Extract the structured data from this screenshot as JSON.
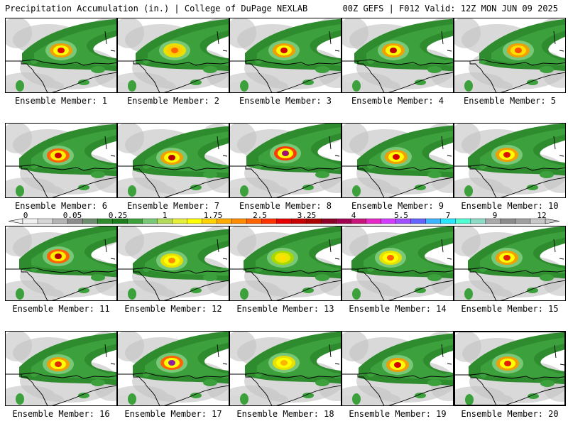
{
  "header": {
    "left": "Precipitation Accumulation (in.) | College of DuPage NEXLAB",
    "right": "00Z GEFS | F012 Valid: 12Z MON JUN 09 2025"
  },
  "members": [
    {
      "label": "Ensemble Member: 1",
      "core": [
        "#f0a000",
        "#ffff00",
        "#e00000"
      ]
    },
    {
      "label": "Ensemble Member: 2",
      "core": [
        "#e8e000",
        "#ffcc00",
        "#ff6400"
      ]
    },
    {
      "label": "Ensemble Member: 3",
      "core": [
        "#f0a000",
        "#ffff00",
        "#d40000"
      ]
    },
    {
      "label": "Ensemble Member: 4",
      "core": [
        "#f0a000",
        "#ffff00",
        "#c00000"
      ]
    },
    {
      "label": "Ensemble Member: 5",
      "core": [
        "#f0a000",
        "#ffe000",
        "#ff5000"
      ]
    },
    {
      "label": "Ensemble Member: 6",
      "core": [
        "#ff6400",
        "#ffee00",
        "#c80000"
      ]
    },
    {
      "label": "Ensemble Member: 7",
      "core": [
        "#f0a000",
        "#ffff00",
        "#b40000"
      ]
    },
    {
      "label": "Ensemble Member: 8",
      "core": [
        "#ff3c00",
        "#ffff00",
        "#a01070"
      ]
    },
    {
      "label": "Ensemble Member: 9",
      "core": [
        "#f0a000",
        "#ffff00",
        "#d40000"
      ]
    },
    {
      "label": "Ensemble Member: 10",
      "core": [
        "#f0a000",
        "#ffff00",
        "#dc1400"
      ]
    },
    {
      "label": "Ensemble Member: 11",
      "core": [
        "#ff6400",
        "#ffee00",
        "#b40000"
      ]
    },
    {
      "label": "Ensemble Member: 12",
      "core": [
        "#e8e000",
        "#ffff00",
        "#ff8c00"
      ]
    },
    {
      "label": "Ensemble Member: 13",
      "core": [
        "#a8d800",
        "#e8e800",
        "#ffe000"
      ]
    },
    {
      "label": "Ensemble Member: 14",
      "core": [
        "#e8e000",
        "#ffff00",
        "#ff6400"
      ]
    },
    {
      "label": "Ensemble Member: 15",
      "core": [
        "#f0a000",
        "#ffff00",
        "#e02000"
      ]
    },
    {
      "label": "Ensemble Member: 16",
      "core": [
        "#f0a000",
        "#ffff00",
        "#e03000"
      ]
    },
    {
      "label": "Ensemble Member: 17",
      "core": [
        "#ff6400",
        "#ffff00",
        "#9020a0"
      ]
    },
    {
      "label": "Ensemble Member: 18",
      "core": [
        "#e8e000",
        "#ffff00",
        "#ffb400"
      ]
    },
    {
      "label": "Ensemble Member: 19",
      "core": [
        "#f0a000",
        "#ffff00",
        "#d40000"
      ]
    },
    {
      "label": "Ensemble Member: 20",
      "core": [
        "#f0a000",
        "#ffff00",
        "#e02000"
      ]
    }
  ],
  "colorbar": {
    "labels": [
      "0",
      "0.05",
      "0.25",
      "1",
      "1.75",
      "2.5",
      "3.25",
      "4",
      "5.5",
      "7",
      "9",
      "12"
    ],
    "colors": [
      "#f0f0f0",
      "#d7d7d7",
      "#b4b4b4",
      "#8c8c8c",
      "#6e8c6e",
      "#2e8b2e",
      "#1e7d1e",
      "#3ca03c",
      "#78c878",
      "#b4dc5a",
      "#e6f03c",
      "#ffff00",
      "#ffd200",
      "#ffaa00",
      "#ff8c00",
      "#ff6400",
      "#ff3200",
      "#e60000",
      "#c80000",
      "#aa0000",
      "#8c0028",
      "#a00050",
      "#c8147a",
      "#e628c8",
      "#d23cff",
      "#a050ff",
      "#6464ff",
      "#3cb4ff",
      "#28e6ff",
      "#50ffd2",
      "#8cdcc8",
      "#aaaaaa",
      "#8c8c8c",
      "#a0a0a0",
      "#c8c8c8"
    ]
  }
}
